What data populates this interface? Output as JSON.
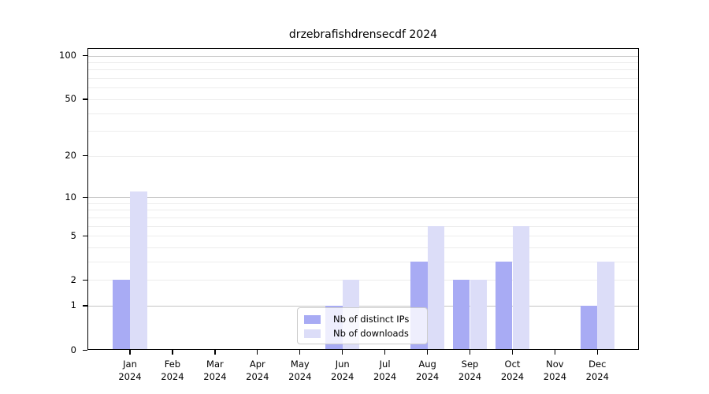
{
  "chart_data": {
    "type": "bar",
    "title": "drzebrafishdrensecdf 2024",
    "x_tick_months": [
      "Jan",
      "Feb",
      "Mar",
      "Apr",
      "May",
      "Jun",
      "Jul",
      "Aug",
      "Sep",
      "Oct",
      "Nov",
      "Dec"
    ],
    "x_tick_year": "2024",
    "series": [
      {
        "name": "Nb of distinct IPs",
        "color": "#a8abf4",
        "values": [
          2,
          0,
          0,
          0,
          0,
          1,
          0,
          3,
          2,
          3,
          0,
          1
        ]
      },
      {
        "name": "Nb of downloads",
        "color": "#dcddf8",
        "values": [
          11,
          0,
          0,
          0,
          0,
          2,
          0,
          6,
          2,
          6,
          0,
          3
        ]
      }
    ],
    "y_ticks": [
      0,
      1,
      2,
      5,
      10,
      20,
      50,
      100
    ],
    "scale": "log1p",
    "ylim": [
      0,
      113
    ],
    "grid": {
      "major": [
        1,
        10,
        100
      ],
      "minor": [
        2,
        3,
        4,
        5,
        6,
        7,
        8,
        9,
        20,
        30,
        40,
        50,
        60,
        70,
        80,
        90
      ]
    },
    "legend": {
      "position": "lower-center",
      "items": [
        "Nb of distinct IPs",
        "Nb of downloads"
      ]
    }
  },
  "colors": {
    "distinct_ips": "#a8abf4",
    "downloads": "#dcddf8",
    "major_grid": "#c4c4c4",
    "minor_grid": "#ededed",
    "spine": "#000000",
    "legend_border": "#cccccc"
  }
}
